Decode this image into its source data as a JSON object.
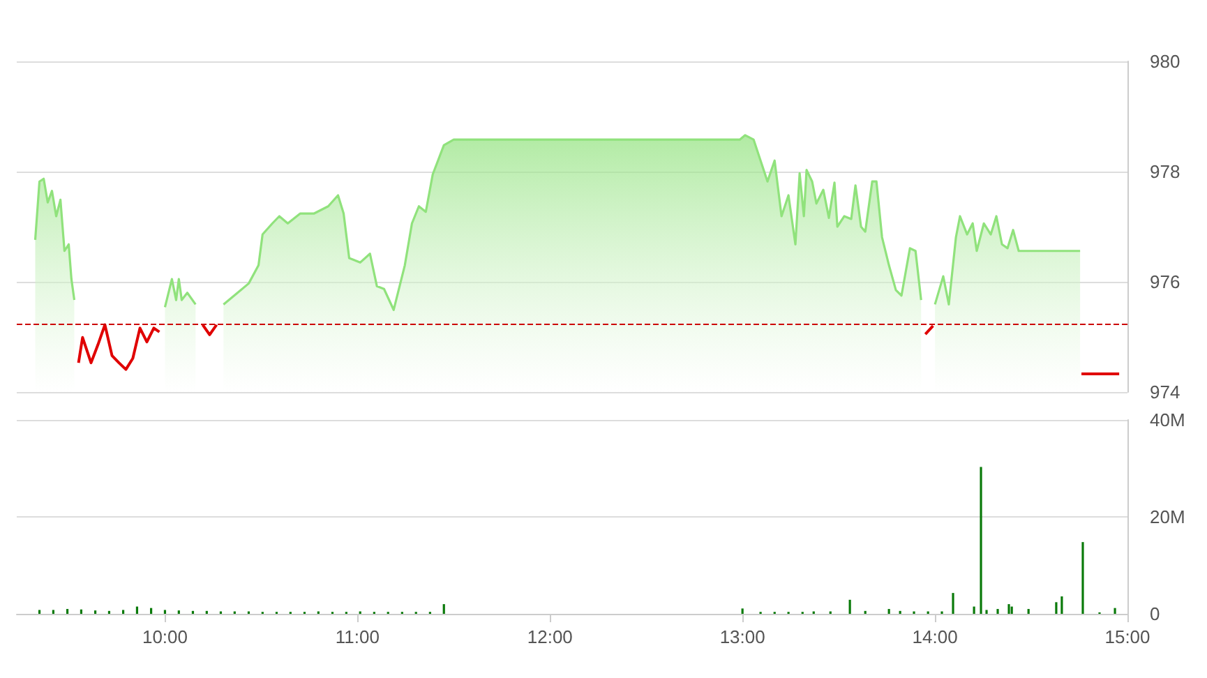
{
  "chart_data": [
    {
      "type": "area",
      "x": [
        9.326,
        9.348,
        9.37,
        9.391,
        9.413,
        9.435,
        9.457,
        9.478,
        9.5,
        9.514,
        9.529,
        9.551,
        9.572,
        9.616,
        9.652,
        9.688,
        9.725,
        9.761,
        9.797,
        9.833,
        9.87,
        9.906,
        9.942,
        9.971,
        10.0,
        10.036,
        10.058,
        10.072,
        10.087,
        10.116,
        10.159,
        10.196,
        10.232,
        10.268,
        10.304,
        10.377,
        10.435,
        10.486,
        10.507,
        10.558,
        10.594,
        10.638,
        10.703,
        10.775,
        10.848,
        10.899,
        10.928,
        10.957,
        11.014,
        11.065,
        11.101,
        11.138,
        11.188,
        11.246,
        11.283,
        11.319,
        11.355,
        11.391,
        11.449,
        11.5,
        12.986,
        13.014,
        13.058,
        13.094,
        13.13,
        13.167,
        13.203,
        13.239,
        13.275,
        13.297,
        13.319,
        13.333,
        13.362,
        13.384,
        13.42,
        13.449,
        13.478,
        13.493,
        13.529,
        13.565,
        13.587,
        13.616,
        13.638,
        13.674,
        13.696,
        13.725,
        13.761,
        13.797,
        13.826,
        13.87,
        13.899,
        13.928,
        13.95,
        13.99,
        14.0,
        14.043,
        14.072,
        14.109,
        14.13,
        14.167,
        14.196,
        14.217,
        14.254,
        14.29,
        14.319,
        14.348,
        14.377,
        14.406,
        14.435,
        14.478,
        14.754,
        14.761,
        14.957
      ],
      "series": [
        {
          "color": "#90e27c",
          "values": [
            976.76,
            977.82,
            977.87,
            977.44,
            977.65,
            977.19,
            977.49,
            976.56,
            976.68,
            976.05,
            975.67,
            null,
            null,
            null,
            null,
            null,
            null,
            null,
            null,
            null,
            null,
            null,
            null,
            null,
            975.54,
            976.05,
            975.67,
            976.05,
            975.67,
            975.8,
            975.59,
            null,
            null,
            null,
            975.59,
            975.8,
            975.97,
            976.3,
            976.86,
            977.06,
            977.19,
            977.06,
            977.24,
            977.24,
            977.37,
            977.57,
            977.24,
            976.43,
            976.35,
            976.51,
            975.92,
            975.87,
            975.49,
            976.3,
            977.06,
            977.37,
            977.27,
            977.95,
            978.48,
            978.58,
            978.58,
            978.66,
            978.58,
            978.2,
            977.82,
            978.2,
            977.19,
            977.57,
            976.68,
            977.97,
            977.19,
            978.03,
            977.82,
            977.42,
            977.67,
            977.16,
            977.8,
            977.0,
            977.19,
            977.14,
            977.75,
            977.0,
            976.91,
            977.82,
            977.82,
            976.81,
            976.3,
            975.85,
            975.75,
            976.61,
            976.56,
            975.67,
            null,
            null,
            975.59,
            976.1,
            975.59,
            976.81,
            977.19,
            976.86,
            977.06,
            976.56,
            977.06,
            976.86,
            977.19,
            976.68,
            976.61,
            976.94,
            976.56,
            976.56,
            976.56,
            null,
            null
          ]
        },
        {
          "type": "line",
          "color": "#e00000",
          "values": [
            null,
            null,
            null,
            null,
            null,
            null,
            null,
            null,
            null,
            null,
            null,
            974.53,
            974.99,
            974.53,
            974.86,
            975.22,
            974.66,
            974.53,
            974.41,
            974.61,
            975.16,
            974.91,
            975.16,
            975.09,
            null,
            null,
            null,
            null,
            null,
            null,
            null,
            975.22,
            975.04,
            975.22,
            null,
            null,
            null,
            null,
            null,
            null,
            null,
            null,
            null,
            null,
            null,
            null,
            null,
            null,
            null,
            null,
            null,
            null,
            null,
            null,
            null,
            null,
            null,
            null,
            null,
            null,
            null,
            null,
            null,
            null,
            null,
            null,
            null,
            null,
            null,
            null,
            null,
            null,
            null,
            null,
            null,
            null,
            null,
            null,
            null,
            null,
            null,
            null,
            null,
            null,
            null,
            null,
            null,
            null,
            null,
            null,
            null,
            null,
            975.05,
            975.2,
            null,
            null,
            null,
            null,
            null,
            null,
            null,
            null,
            null,
            null,
            null,
            null,
            null,
            null,
            null,
            null,
            null,
            974.33,
            974.33
          ]
        }
      ],
      "xlim": [
        9.23,
        15
      ],
      "ylim": [
        974,
        980
      ],
      "yticks": [
        974,
        976,
        978,
        980
      ],
      "grid": "y",
      "tick_labels": "y",
      "marker": "none",
      "ref_lines": [
        {
          "axis": "y",
          "value": 975.24,
          "color": "#cc0000",
          "line_style": "dashed"
        }
      ]
    },
    {
      "type": "bar",
      "x": [
        9.348,
        9.42,
        9.493,
        9.565,
        9.638,
        9.71,
        9.783,
        9.855,
        9.928,
        10.0,
        10.072,
        10.145,
        10.217,
        10.29,
        10.362,
        10.435,
        10.507,
        10.58,
        10.652,
        10.725,
        10.797,
        10.87,
        10.942,
        11.014,
        11.087,
        11.159,
        11.232,
        11.304,
        11.377,
        11.449,
        13.0,
        13.094,
        13.167,
        13.239,
        13.312,
        13.37,
        13.457,
        13.558,
        13.638,
        13.761,
        13.819,
        13.891,
        13.964,
        14.036,
        14.094,
        14.203,
        14.239,
        14.268,
        14.326,
        14.384,
        14.399,
        14.486,
        14.63,
        14.659,
        14.768,
        14.855,
        14.935
      ],
      "values": [
        0.8,
        0.8,
        1,
        0.9,
        0.7,
        0.6,
        0.8,
        1.5,
        1.2,
        0.8,
        0.7,
        0.6,
        0.6,
        0.5,
        0.5,
        0.5,
        0.4,
        0.4,
        0.4,
        0.4,
        0.5,
        0.4,
        0.4,
        0.5,
        0.4,
        0.4,
        0.4,
        0.4,
        0.4,
        2,
        1.1,
        0.4,
        0.4,
        0.4,
        0.4,
        0.5,
        0.5,
        2.9,
        0.6,
        1,
        0.6,
        0.5,
        0.5,
        0.5,
        4.3,
        1.5,
        30.3,
        0.8,
        1,
        2,
        1.5,
        1,
        2.4,
        3.6,
        14.8,
        0.3,
        1.2
      ],
      "color": "#0a7a0a",
      "xlim": [
        9.23,
        15
      ],
      "xticks": [
        {
          "value": 10,
          "label": "10:00"
        },
        {
          "value": 11,
          "label": "11:00"
        },
        {
          "value": 12,
          "label": "12:00"
        },
        {
          "value": 13,
          "label": "13:00"
        },
        {
          "value": 14,
          "label": "14:00"
        },
        {
          "value": 15,
          "label": "15:00"
        }
      ],
      "ylim": [
        0,
        40
      ],
      "yticks": [
        {
          "value": 0,
          "label": "0"
        },
        {
          "value": 20,
          "label": "20M"
        },
        {
          "value": 40,
          "label": "40M"
        }
      ],
      "grid": "y"
    }
  ]
}
